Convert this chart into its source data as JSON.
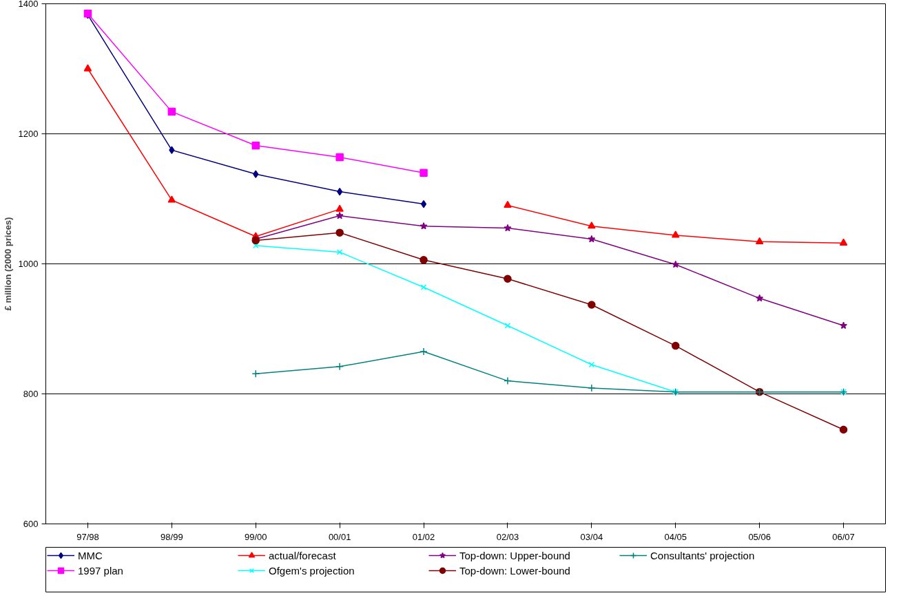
{
  "chart_data": {
    "type": "line",
    "ylabel": "£ million (2000 prices)",
    "categories": [
      "97/98",
      "98/99",
      "99/00",
      "00/01",
      "01/02",
      "02/03",
      "03/04",
      "04/05",
      "05/06",
      "06/07"
    ],
    "ylim": [
      600,
      1400
    ],
    "yticks": [
      600,
      800,
      1000,
      1200,
      1400
    ],
    "grid": "y",
    "legend": "bottom",
    "series": [
      {
        "name": "MMC",
        "color": "#000080",
        "marker": "diamond",
        "values": [
          1383,
          1175,
          1138,
          1111,
          1092,
          null,
          null,
          null,
          null,
          null
        ]
      },
      {
        "name": "1997 plan",
        "color": "#ff00ff",
        "marker": "square",
        "values": [
          1385,
          1234,
          1182,
          1164,
          1140,
          null,
          null,
          null,
          null,
          null
        ]
      },
      {
        "name": "actual/forecast",
        "color": "#ff0000",
        "marker": "triangle",
        "values": [
          1300,
          1098,
          1042,
          1084,
          null,
          1090,
          1058,
          1044,
          1034,
          1032
        ]
      },
      {
        "name": "Ofgem's projection",
        "color": "#00ffff",
        "marker": "x",
        "values": [
          null,
          null,
          1028,
          1018,
          964,
          905,
          845,
          803,
          803,
          803
        ]
      },
      {
        "name": "Top-down: Upper-bound",
        "color": "#800080",
        "marker": "star",
        "values": [
          null,
          null,
          1038,
          1074,
          1058,
          1055,
          1038,
          999,
          947,
          905
        ]
      },
      {
        "name": "Top-down: Lower-bound",
        "color": "#800000",
        "marker": "circle",
        "values": [
          null,
          null,
          1036,
          1048,
          1006,
          977,
          937,
          874,
          803,
          745
        ]
      },
      {
        "name": "Consultants' projection",
        "color": "#008080",
        "marker": "cross",
        "values": [
          null,
          null,
          831,
          842,
          865,
          820,
          809,
          803,
          803,
          803
        ]
      }
    ]
  }
}
